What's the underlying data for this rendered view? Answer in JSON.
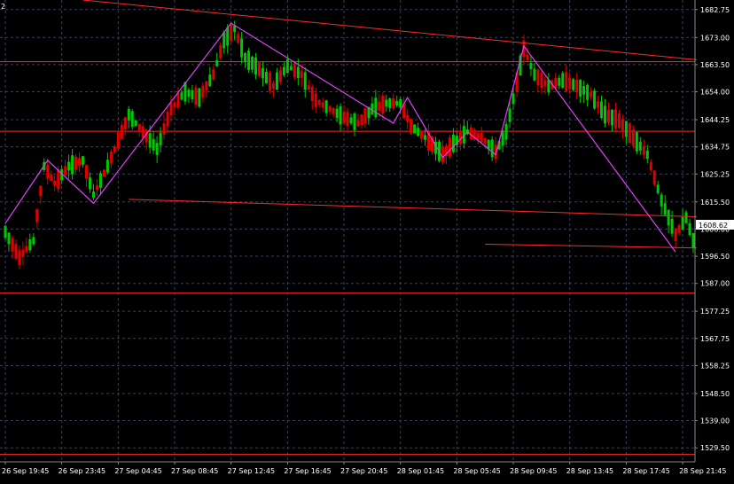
{
  "window": {
    "corner_label": "2"
  },
  "price_label": {
    "value": "1608.62"
  },
  "colors": {
    "background": "#000000",
    "grid": "#3a3f5c",
    "axis_text": "#ffffff",
    "up_candle": "#00c800",
    "down_candle": "#e00000",
    "trend_lines": "#ff2a2a",
    "zigzag": "#e040fb",
    "price_label_bg": "#ffffff",
    "price_label_fg": "#000000"
  },
  "chart_data": {
    "type": "candlestick",
    "title": "",
    "xlabel": "",
    "ylabel": "",
    "ylim": [
      1524.6,
      1686.1
    ],
    "grid": true,
    "y_ticks": [
      "1682.75",
      "1673.00",
      "1663.50",
      "1654.00",
      "1644.25",
      "1634.75",
      "1625.25",
      "1615.50",
      "1606.00",
      "1596.50",
      "1587.00",
      "1577.25",
      "1567.75",
      "1558.25",
      "1548.50",
      "1539.00",
      "1529.50"
    ],
    "x_ticks": [
      "26 Sep 19:45",
      "26 Sep 23:45",
      "27 Sep 04:45",
      "27 Sep 08:45",
      "27 Sep 12:45",
      "27 Sep 16:45",
      "27 Sep 20:45",
      "28 Sep 01:45",
      "28 Sep 05:45",
      "28 Sep 09:45",
      "28 Sep 13:45",
      "28 Sep 17:45",
      "28 Sep 21:45"
    ],
    "x_tick_index": [
      0,
      16,
      32,
      48,
      64,
      80,
      96,
      112,
      128,
      144,
      160,
      176,
      192
    ],
    "bar_count": 196,
    "zigzag": [
      [
        0,
        1608
      ],
      [
        12,
        1630
      ],
      [
        25,
        1615
      ],
      [
        64,
        1678
      ],
      [
        110,
        1643
      ],
      [
        114,
        1652
      ],
      [
        124,
        1631
      ],
      [
        131,
        1640
      ],
      [
        139,
        1632
      ],
      [
        147,
        1670
      ],
      [
        190,
        1598
      ]
    ],
    "anchors": [
      [
        0,
        1605
      ],
      [
        4,
        1596
      ],
      [
        8,
        1602
      ],
      [
        11,
        1628
      ],
      [
        14,
        1622
      ],
      [
        18,
        1628
      ],
      [
        22,
        1630
      ],
      [
        25,
        1618
      ],
      [
        29,
        1628
      ],
      [
        32,
        1637
      ],
      [
        35,
        1646
      ],
      [
        39,
        1640
      ],
      [
        43,
        1634
      ],
      [
        47,
        1648
      ],
      [
        51,
        1654
      ],
      [
        55,
        1652
      ],
      [
        59,
        1660
      ],
      [
        62,
        1672
      ],
      [
        65,
        1676
      ],
      [
        68,
        1666
      ],
      [
        72,
        1662
      ],
      [
        76,
        1656
      ],
      [
        80,
        1663
      ],
      [
        84,
        1660
      ],
      [
        88,
        1651
      ],
      [
        92,
        1648
      ],
      [
        96,
        1645
      ],
      [
        100,
        1643
      ],
      [
        104,
        1648
      ],
      [
        108,
        1650
      ],
      [
        112,
        1650
      ],
      [
        115,
        1642
      ],
      [
        119,
        1638
      ],
      [
        124,
        1632
      ],
      [
        127,
        1636
      ],
      [
        131,
        1640
      ],
      [
        135,
        1638
      ],
      [
        139,
        1633
      ],
      [
        142,
        1640
      ],
      [
        147,
        1669
      ],
      [
        150,
        1660
      ],
      [
        154,
        1656
      ],
      [
        158,
        1658
      ],
      [
        162,
        1656
      ],
      [
        166,
        1653
      ],
      [
        170,
        1646
      ],
      [
        174,
        1644
      ],
      [
        178,
        1638
      ],
      [
        182,
        1632
      ],
      [
        186,
        1616
      ],
      [
        190,
        1604
      ],
      [
        193,
        1610
      ],
      [
        195,
        1602
      ]
    ],
    "horizontal_lines": [
      1664.5,
      1640.2,
      1583.6,
      1527.2
    ],
    "trend_lines": [
      [
        [
          22,
          1686.1
        ],
        [
          196,
          1665.2
        ]
      ],
      [
        [
          35,
          1616.4
        ],
        [
          196,
          1610.3
        ]
      ],
      [
        [
          136,
          1600.7
        ],
        [
          196,
          1599.4
        ]
      ]
    ]
  }
}
